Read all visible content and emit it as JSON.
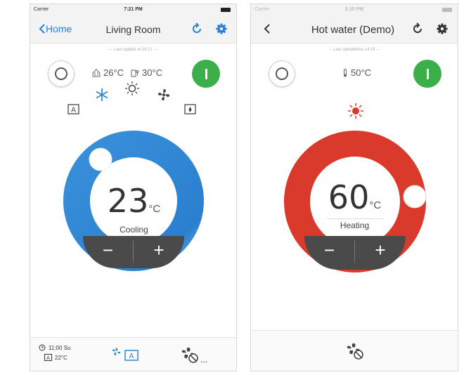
{
  "phone1": {
    "status": {
      "carrier": "Carrier",
      "time": "7:21 PM"
    },
    "nav": {
      "back_label": "Home",
      "title": "Living Room"
    },
    "last_update": "--- Last update at 19:21 ---",
    "indoor_temp": "26°C",
    "outdoor_temp": "30°C",
    "setpoint": "23",
    "unit": "°C",
    "mode_label": "Cooling",
    "minus_label": "−",
    "plus_label": "+",
    "schedule_time": "11:00 Su",
    "schedule_temp": "22°C",
    "more_label": "..."
  },
  "phone2": {
    "status": {
      "carrier": "Carrier",
      "time": "2:15 PM"
    },
    "nav": {
      "title": "Hot water (Demo)"
    },
    "last_update": "-- Last updatetime 14:15 --",
    "water_temp": "50°C",
    "setpoint": "60",
    "unit": "°C",
    "mode_label": "Heating",
    "minus_label": "−",
    "plus_label": "+"
  },
  "colors": {
    "accent": "#2a7fd8",
    "cool": "#2e88d3",
    "heat": "#d93a2b",
    "on": "#3bb04a",
    "dark": "#4a4a4a"
  }
}
